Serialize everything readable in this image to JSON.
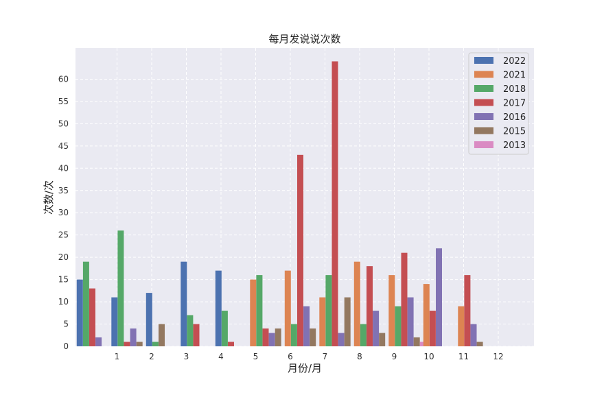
{
  "chart_data": {
    "type": "bar",
    "title": "每月发说说次数",
    "xlabel": "月份/月",
    "ylabel": "次数/次",
    "categories": [
      "1",
      "2",
      "3",
      "4",
      "5",
      "6",
      "7",
      "8",
      "9",
      "10",
      "11",
      "12"
    ],
    "ylim": [
      0,
      67
    ],
    "yticks": [
      0,
      5,
      10,
      15,
      20,
      25,
      30,
      35,
      40,
      45,
      50,
      55,
      60
    ],
    "grid": true,
    "legend_position": "top-right",
    "series": [
      {
        "name": "2022",
        "color": "#4c72b0",
        "values": [
          15,
          11,
          12,
          19,
          17,
          0,
          0,
          0,
          0,
          0,
          0,
          0
        ]
      },
      {
        "name": "2021",
        "color": "#dd8452",
        "values": [
          0,
          0,
          0,
          0,
          0,
          15,
          17,
          11,
          19,
          16,
          14,
          9
        ]
      },
      {
        "name": "2018",
        "color": "#55a868",
        "values": [
          19,
          26,
          1,
          7,
          8,
          16,
          5,
          16,
          5,
          9,
          0,
          0
        ]
      },
      {
        "name": "2017",
        "color": "#c44e52",
        "values": [
          13,
          1,
          0,
          5,
          1,
          4,
          43,
          64,
          18,
          21,
          8,
          16
        ]
      },
      {
        "name": "2016",
        "color": "#8172b3",
        "values": [
          2,
          4,
          0,
          0,
          0,
          3,
          9,
          3,
          8,
          11,
          22,
          5
        ]
      },
      {
        "name": "2015",
        "color": "#937860",
        "values": [
          0,
          1,
          5,
          0,
          0,
          4,
          4,
          11,
          3,
          2,
          0,
          1
        ]
      },
      {
        "name": "2013",
        "color": "#da8bc3",
        "values": [
          0,
          0,
          0,
          0,
          0,
          0,
          0,
          0,
          0,
          1,
          0,
          0
        ]
      }
    ]
  }
}
